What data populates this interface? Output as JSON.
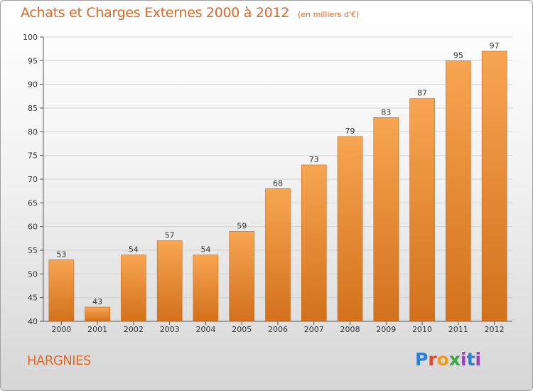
{
  "header": {
    "title": "Achats et Charges Externes 2000 à 2012",
    "subtitle": "(en milliers d'€)"
  },
  "footer": {
    "commune": "HARGNIES",
    "logo": [
      "P",
      "r",
      "o",
      "x",
      "i",
      "t",
      "i"
    ]
  },
  "colors": {
    "bar_light": "#f7a552",
    "bar_dark": "#d2711c",
    "title": "#e0682a"
  },
  "chart_data": {
    "type": "bar",
    "title": "Achats et Charges Externes 2000 à 2012",
    "subtitle": "(en milliers d'€)",
    "categories": [
      "2000",
      "2001",
      "2002",
      "2003",
      "2004",
      "2005",
      "2006",
      "2007",
      "2008",
      "2009",
      "2010",
      "2011",
      "2012"
    ],
    "values": [
      53,
      43,
      54,
      57,
      54,
      59,
      68,
      73,
      79,
      83,
      87,
      95,
      97
    ],
    "ylim": [
      40,
      100
    ],
    "yticks": [
      40,
      45,
      50,
      55,
      60,
      65,
      70,
      75,
      80,
      85,
      90,
      95,
      100
    ],
    "grid": true,
    "legend": "none"
  }
}
